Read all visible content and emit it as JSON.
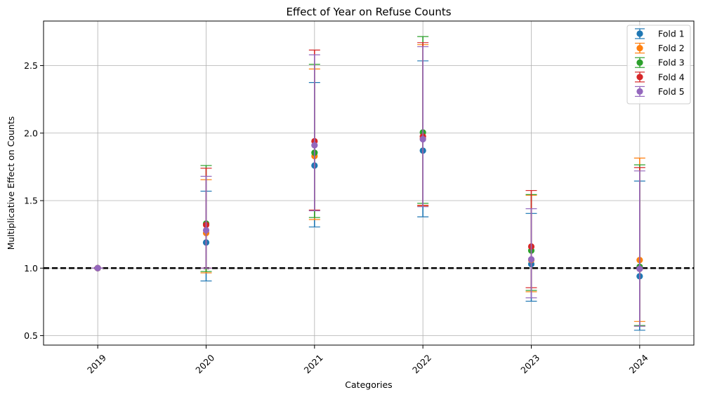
{
  "chart_data": {
    "type": "scatter",
    "title": "Effect of Year on Refuse Counts",
    "xlabel": "Categories",
    "ylabel": "Multiplicative Effect on Counts",
    "categories": [
      "2019",
      "2020",
      "2021",
      "2022",
      "2023",
      "2024"
    ],
    "ylim": [
      0.43,
      2.83
    ],
    "yticks": [
      "0.5",
      "1.0",
      "1.5",
      "2.0",
      "2.5"
    ],
    "grid": true,
    "legend_position": "top-right",
    "reference_line": {
      "y": 1.0,
      "style": "dashed",
      "color": "#000000"
    },
    "series": [
      {
        "name": "Fold 1",
        "color": "#1f77b4",
        "values": [
          1.0,
          1.19,
          1.76,
          1.87,
          1.03,
          0.94
        ],
        "lower": [
          1.0,
          0.905,
          1.305,
          1.38,
          0.755,
          0.54
        ],
        "upper": [
          1.0,
          1.57,
          2.375,
          2.535,
          1.405,
          1.645
        ]
      },
      {
        "name": "Fold 2",
        "color": "#ff7f0e",
        "values": [
          1.0,
          1.26,
          1.83,
          1.96,
          1.06,
          1.06
        ],
        "lower": [
          1.0,
          0.965,
          1.36,
          1.46,
          0.825,
          0.605
        ],
        "upper": [
          1.0,
          1.655,
          2.475,
          2.655,
          1.54,
          1.815
        ]
      },
      {
        "name": "Fold 3",
        "color": "#2ca02c",
        "values": [
          1.0,
          1.33,
          1.855,
          2.005,
          1.13,
          1.01
        ],
        "lower": [
          1.0,
          0.975,
          1.375,
          1.48,
          0.835,
          0.575
        ],
        "upper": [
          1.0,
          1.76,
          2.51,
          2.715,
          1.545,
          1.765
        ]
      },
      {
        "name": "Fold 4",
        "color": "#d62728",
        "values": [
          1.0,
          1.32,
          1.94,
          1.975,
          1.16,
          0.995
        ],
        "lower": [
          1.0,
          1.0,
          1.43,
          1.465,
          0.855,
          0.57
        ],
        "upper": [
          1.0,
          1.74,
          2.615,
          2.67,
          1.575,
          1.745
        ]
      },
      {
        "name": "Fold 5",
        "color": "#9467bd",
        "values": [
          1.0,
          1.28,
          1.91,
          1.955,
          1.065,
          0.995
        ],
        "lower": [
          1.0,
          1.0,
          1.425,
          1.455,
          0.78,
          0.57
        ],
        "upper": [
          1.0,
          1.68,
          2.58,
          2.64,
          1.44,
          1.72
        ]
      }
    ]
  }
}
